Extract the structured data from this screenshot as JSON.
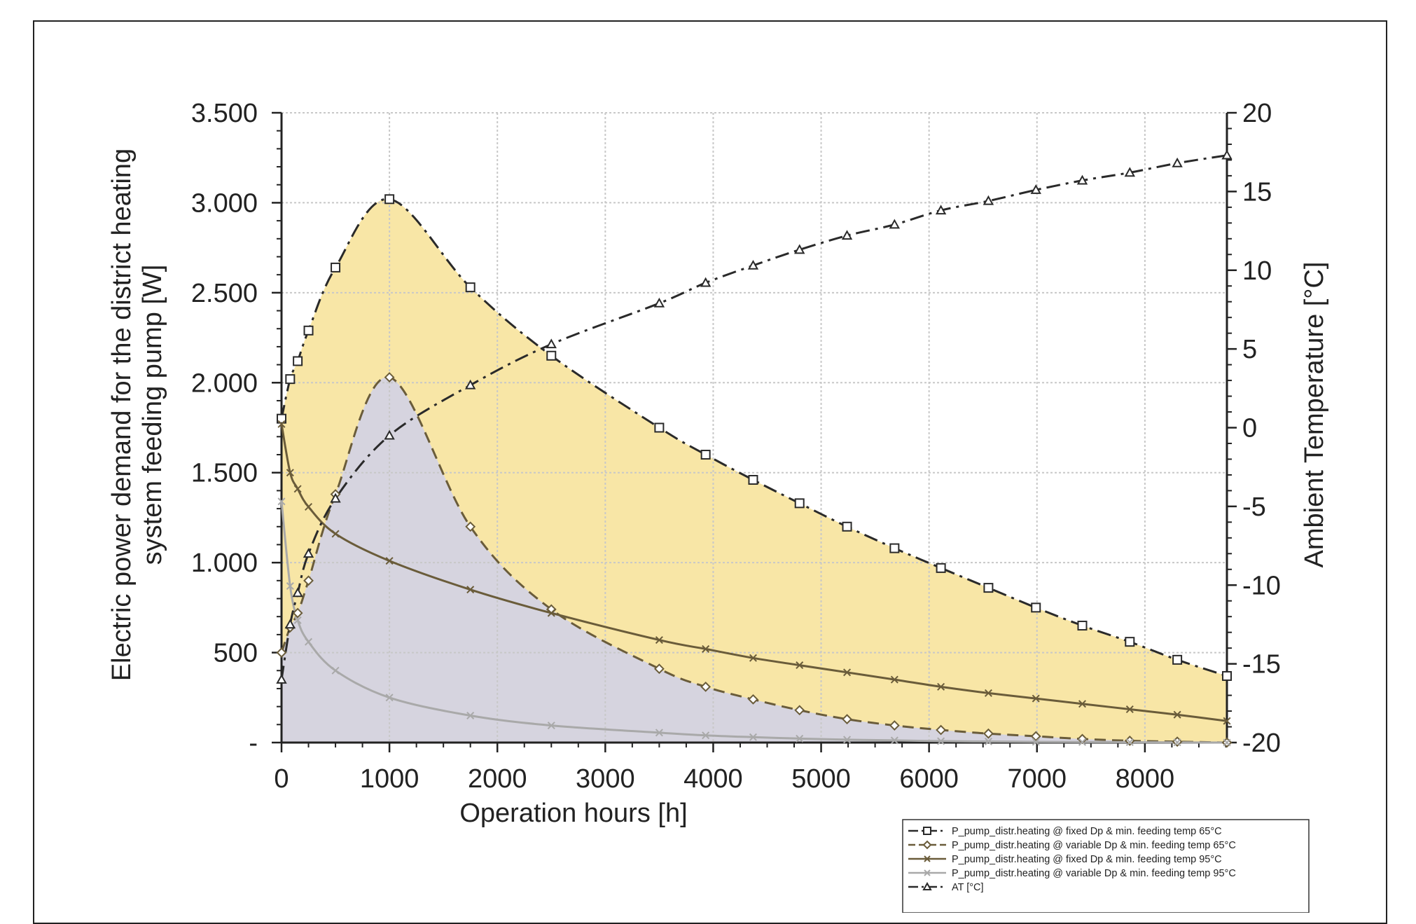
{
  "chart_data": {
    "type": "line",
    "colors": {
      "fill_65_fixed": "#f8e6a6",
      "fill_65_variable": "#d6d4df",
      "line_dark": "#2a2a2a",
      "line_olive": "#6a5c3a",
      "line_light": "#a9a9a9",
      "grid": "#c8c8c8"
    },
    "xlabel": "Operation hours [h]",
    "ylabel_lines": [
      "Electric power demand for the district heating",
      "system feeding pump [W]"
    ],
    "y2label": "Ambient Temperature [°C]",
    "xlim": [
      0,
      8760
    ],
    "ylim": [
      0,
      3500
    ],
    "y2lim": [
      -20,
      20
    ],
    "x_ticks": [
      0,
      1000,
      2000,
      3000,
      4000,
      5000,
      6000,
      7000,
      8000
    ],
    "x_tick_labels": [
      "0",
      "1000",
      "2000",
      "3000",
      "4000",
      "5000",
      "6000",
      "7000",
      "8000"
    ],
    "y_ticks": [
      0,
      500,
      1000,
      1500,
      2000,
      2500,
      3000,
      3500
    ],
    "y_tick_labels": [
      "-",
      "500",
      "1.000",
      "1.500",
      "2.000",
      "2.500",
      "3.000",
      "3.500"
    ],
    "y2_ticks": [
      -20,
      -15,
      -10,
      -5,
      0,
      5,
      10,
      15,
      20
    ],
    "y2_tick_labels": [
      "-20",
      "-15",
      "-10",
      "-5",
      "0",
      "5",
      "10",
      "15",
      "20"
    ],
    "grid": true,
    "legend_position": "bottom-right",
    "series": [
      {
        "name": "P_pump_distr.heating @ fixed Dp & min. feeding temp 65°C",
        "axis": "left",
        "marker": "square",
        "style": "dashdot",
        "fill": true,
        "x": [
          0,
          80,
          150,
          250,
          500,
          1000,
          1750,
          2500,
          3500,
          3930,
          4370,
          4800,
          5240,
          5680,
          6110,
          6550,
          6990,
          7420,
          7860,
          8300,
          8760
        ],
        "y": [
          1800,
          2020,
          2120,
          2290,
          2640,
          3020,
          2530,
          2150,
          1750,
          1600,
          1460,
          1330,
          1200,
          1080,
          970,
          860,
          750,
          650,
          560,
          460,
          370
        ]
      },
      {
        "name": "P_pump_distr.heating @ variable Dp & min. feeding temp 65°C",
        "axis": "left",
        "marker": "diamond",
        "style": "dashed",
        "fill": true,
        "x": [
          0,
          80,
          150,
          250,
          500,
          1000,
          1750,
          2500,
          3500,
          3930,
          4370,
          4800,
          5240,
          5680,
          6110,
          6550,
          6990,
          7420,
          7860,
          8300,
          8760
        ],
        "y": [
          500,
          640,
          720,
          900,
          1380,
          2030,
          1200,
          740,
          410,
          310,
          240,
          180,
          130,
          95,
          70,
          50,
          35,
          20,
          10,
          5,
          0
        ]
      },
      {
        "name": "P_pump_distr.heating @ fixed Dp & min. feeding temp 95°C",
        "axis": "left",
        "marker": "x",
        "style": "solid",
        "fill": false,
        "x": [
          0,
          80,
          150,
          250,
          500,
          1000,
          1750,
          2500,
          3500,
          3930,
          4370,
          4800,
          5240,
          5680,
          6110,
          6550,
          6990,
          7420,
          7860,
          8300,
          8760
        ],
        "y": [
          1770,
          1500,
          1410,
          1310,
          1160,
          1010,
          850,
          720,
          570,
          520,
          470,
          430,
          390,
          350,
          310,
          275,
          245,
          215,
          185,
          155,
          120
        ]
      },
      {
        "name": "P_pump_distr.heating @ variable Dp & min. feeding temp 95°C",
        "axis": "left",
        "marker": "x",
        "style": "solid",
        "fill": false,
        "x": [
          0,
          80,
          150,
          250,
          500,
          1000,
          1750,
          2500,
          3500,
          3930,
          4370,
          4800,
          5240,
          5680,
          6110,
          6550,
          6990,
          7420,
          7860,
          8300,
          8760
        ],
        "y": [
          1340,
          870,
          680,
          560,
          400,
          250,
          150,
          95,
          55,
          40,
          30,
          22,
          16,
          12,
          8,
          6,
          4,
          3,
          2,
          1,
          0
        ]
      },
      {
        "name": "AT [°C]",
        "axis": "right",
        "marker": "triangle",
        "style": "dashdot",
        "fill": false,
        "x": [
          0,
          80,
          150,
          250,
          500,
          1000,
          1750,
          2500,
          3500,
          3930,
          4370,
          4800,
          5240,
          5680,
          6110,
          6550,
          6990,
          7420,
          7860,
          8300,
          8760
        ],
        "y": [
          -16,
          -12.5,
          -10.5,
          -8,
          -4.5,
          -0.5,
          2.7,
          5.3,
          7.9,
          9.2,
          10.3,
          11.3,
          12.2,
          12.9,
          13.8,
          14.4,
          15.1,
          15.7,
          16.2,
          16.8,
          17.3
        ]
      }
    ]
  }
}
